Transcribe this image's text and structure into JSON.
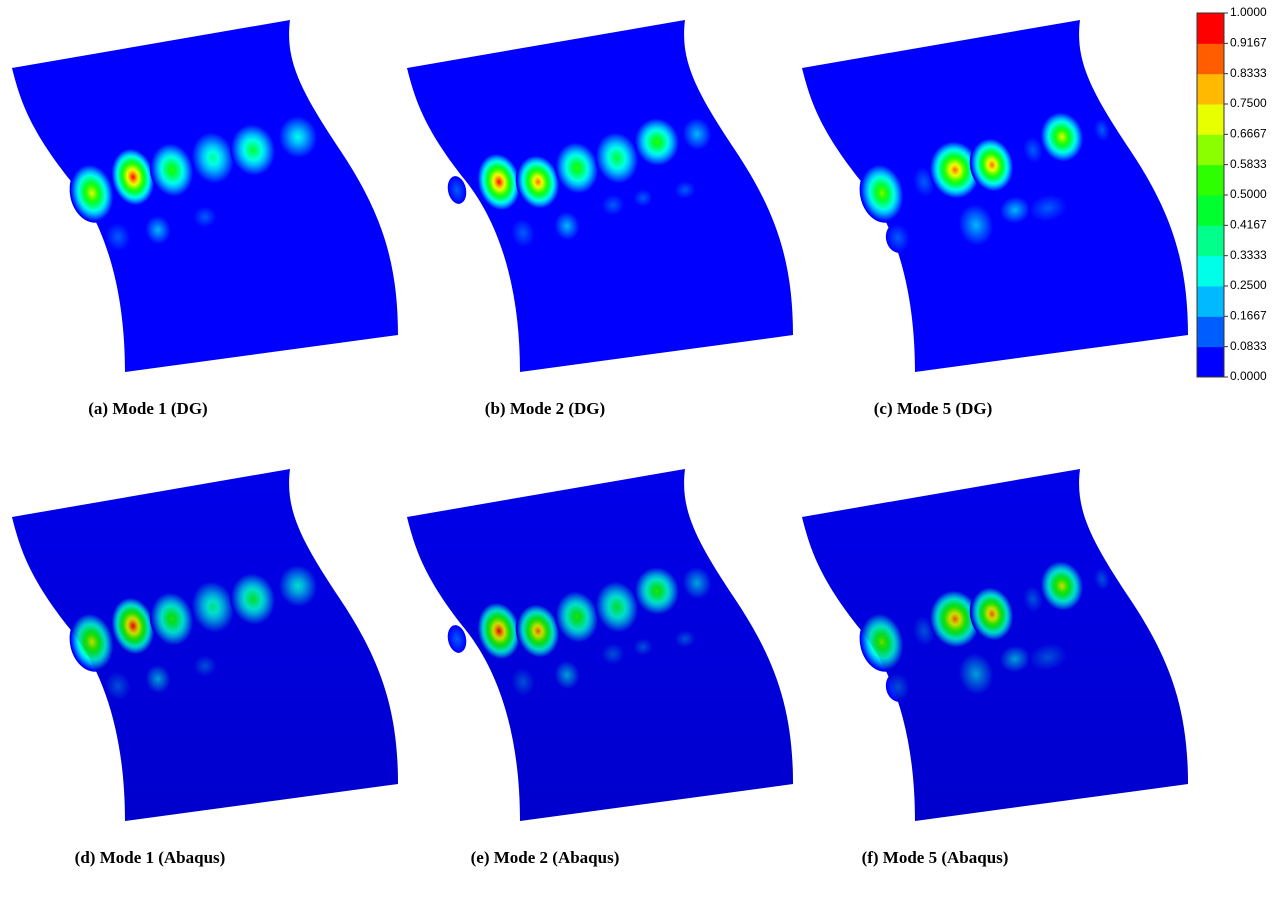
{
  "panels": [
    {
      "caption": "(a) Mode 1 (DG)"
    },
    {
      "caption": "(b) Mode 2 (DG)"
    },
    {
      "caption": "(c) Mode 5 (DG)"
    },
    {
      "caption": "(d) Mode 1 (Abaqus)"
    },
    {
      "caption": "(e) Mode 2 (Abaqus)"
    },
    {
      "caption": "(f) Mode 5 (Abaqus)"
    }
  ],
  "colorbar": {
    "ticks": [
      "1.0000",
      "0.9167",
      "0.8333",
      "0.7500",
      "0.6667",
      "0.5833",
      "0.5000",
      "0.4167",
      "0.3333",
      "0.2500",
      "0.1667",
      "0.0833",
      "0.0000"
    ],
    "colors": [
      "#0000ff",
      "#005dff",
      "#00b9ff",
      "#00ffe8",
      "#00ff8b",
      "#00ff2e",
      "#2eff00",
      "#8bff00",
      "#e8ff00",
      "#ffb900",
      "#ff5d00",
      "#ff0000"
    ]
  }
}
